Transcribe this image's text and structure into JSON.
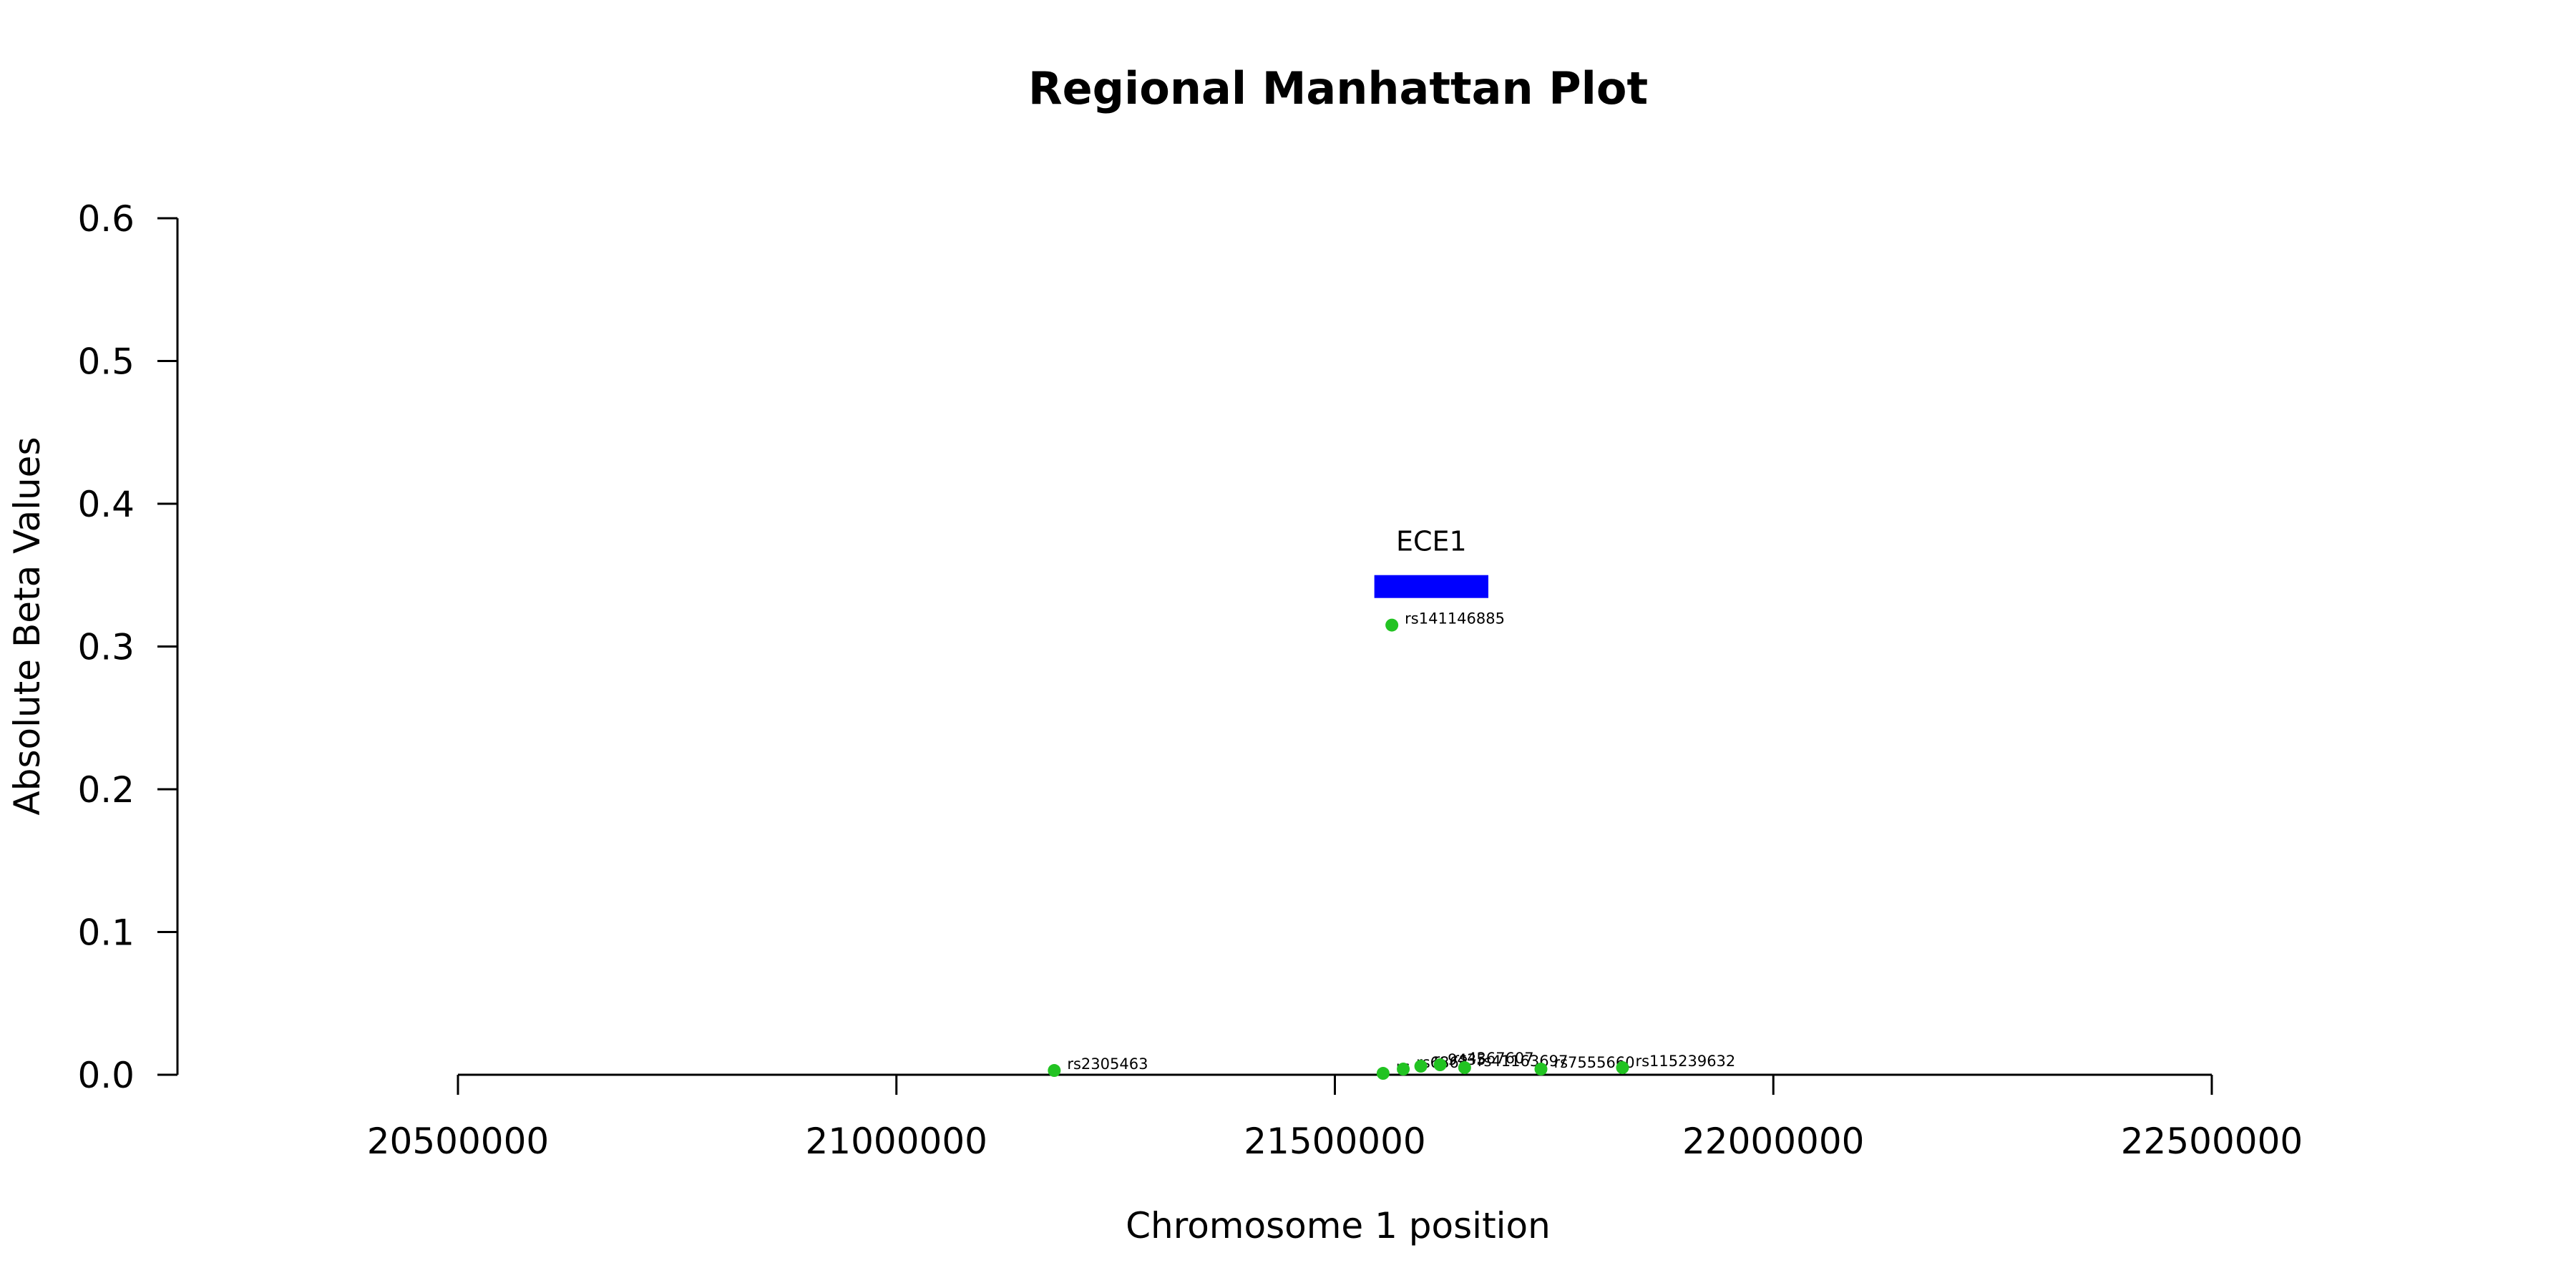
{
  "chart_data": {
    "type": "scatter",
    "title": "Regional Manhattan Plot",
    "xlabel": "Chromosome 1 position",
    "ylabel": "Absolute Beta Values",
    "xlim": [
      20180000,
      22680000
    ],
    "ylim": [
      0,
      0.6
    ],
    "x_ticks": [
      20500000,
      21000000,
      21500000,
      22000000,
      22500000
    ],
    "x_tick_labels": [
      "20500000",
      "21000000",
      "21500000",
      "22000000",
      "22500000"
    ],
    "y_ticks": [
      0,
      0.1,
      0.2,
      0.3,
      0.4,
      0.5,
      0.6
    ],
    "y_tick_labels": [
      "0.0",
      "0.1",
      "0.2",
      "0.3",
      "0.4",
      "0.5",
      "0.6"
    ],
    "grid": false,
    "point_color": "#22c322",
    "gene_color": "#0000ff",
    "points": [
      {
        "label": "rs2305463",
        "x": 21180000,
        "y": 0.003
      },
      {
        "label": "rs141146885",
        "x": 21565000,
        "y": 0.315
      },
      {
        "label": "rs",
        "x": 21555000,
        "y": 0.001
      },
      {
        "label": "rs6863",
        "x": 21578000,
        "y": 0.004
      },
      {
        "label": "rs9435",
        "x": 21598000,
        "y": 0.006
      },
      {
        "label": "rs4367607",
        "x": 21620000,
        "y": 0.007
      },
      {
        "label": "rs41163697",
        "x": 21648000,
        "y": 0.005
      },
      {
        "label": "rs7555660",
        "x": 21735000,
        "y": 0.004
      },
      {
        "label": "rs115239632",
        "x": 21828000,
        "y": 0.005
      }
    ],
    "genes": [
      {
        "name": "ECE1",
        "start": 21545000,
        "end": 21675000,
        "y": 0.342
      }
    ]
  }
}
